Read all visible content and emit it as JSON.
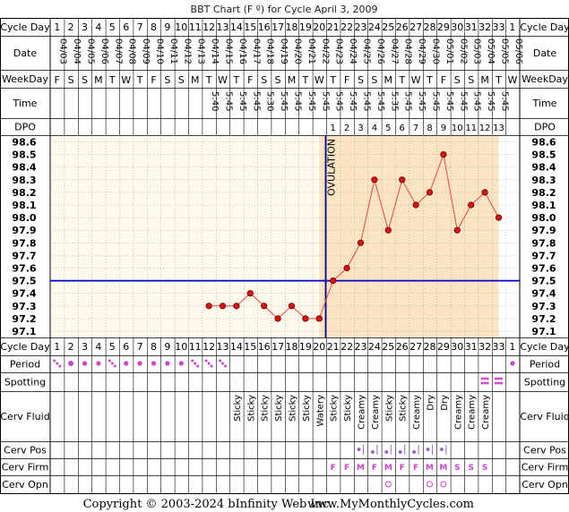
{
  "title": "BBT Chart (F º) for Cycle April 3, 2009",
  "footer": {
    "copyright": "Copyright © 2003-2024 bInfinity Web Inc.",
    "site": "www.MyMonthlyCycles.com"
  },
  "row_labels": {
    "cycle_day": "Cycle Day",
    "date": "Date",
    "weekday": "WeekDay",
    "time": "Time",
    "dpo": "DPO",
    "period": "Period",
    "spotting": "Spotting",
    "cerv_fluid": "Cerv Fluid",
    "cerv_pos": "Cerv Pos",
    "cerv_firm": "Cerv Firm",
    "cerv_opn": "Cerv Opn"
  },
  "columns": {
    "cycle_days": [
      "1",
      "2",
      "3",
      "4",
      "5",
      "6",
      "7",
      "8",
      "9",
      "10",
      "11",
      "12",
      "13",
      "14",
      "15",
      "16",
      "17",
      "18",
      "19",
      "20",
      "21",
      "22",
      "23",
      "24",
      "25",
      "26",
      "27",
      "28",
      "29",
      "30",
      "31",
      "32",
      "33",
      "1"
    ],
    "dates": [
      "04/03",
      "04/04",
      "04/05",
      "04/06",
      "04/07",
      "04/08",
      "04/09",
      "04/10",
      "04/11",
      "04/12",
      "04/13",
      "04/14",
      "04/15",
      "04/16",
      "04/17",
      "04/18",
      "04/19",
      "04/20",
      "04/21",
      "04/22",
      "04/23",
      "04/24",
      "04/25",
      "04/26",
      "04/27",
      "04/28",
      "04/29",
      "04/30",
      "05/01",
      "05/02",
      "05/03",
      "05/04",
      "05/05",
      "05/06"
    ],
    "weekdays": [
      "F",
      "S",
      "S",
      "M",
      "T",
      "W",
      "T",
      "F",
      "S",
      "S",
      "M",
      "T",
      "W",
      "T",
      "F",
      "S",
      "S",
      "M",
      "T",
      "W",
      "T",
      "F",
      "S",
      "S",
      "M",
      "T",
      "W",
      "T",
      "F",
      "S",
      "S",
      "M",
      "T",
      "W"
    ],
    "times": [
      "",
      "",
      "",
      "",
      "",
      "",
      "",
      "",
      "",
      "",
      "",
      "5:40",
      "5:45",
      "5:45",
      "5:45",
      "5:30",
      "5:45",
      "5:45",
      "5:45",
      "5:45",
      "5:45",
      "5:45",
      "5:45",
      "5:45",
      "5:35",
      "5:45",
      "5:45",
      "5:45",
      "5:45",
      "5:45",
      "5:45",
      "5:45",
      "5:45",
      ""
    ],
    "dpo": [
      "",
      "",
      "",
      "",
      "",
      "",
      "",
      "",
      "",
      "",
      "",
      "",
      "",
      "",
      "",
      "",
      "",
      "",
      "",
      "",
      "1",
      "2",
      "3",
      "4",
      "5",
      "6",
      "7",
      "8",
      "9",
      "10",
      "11",
      "12",
      "13",
      ""
    ],
    "period": [
      "spotty",
      "heavy",
      "medium",
      "medium",
      "spotty",
      "medium",
      "medium",
      "medium",
      "medium",
      "medium",
      "spotty",
      "spotty",
      "spotty",
      "",
      "",
      "",
      "",
      "",
      "",
      "",
      "",
      "",
      "",
      "",
      "",
      "",
      "",
      "",
      "",
      "",
      "",
      "",
      "",
      "medium"
    ],
    "spotting": [
      "",
      "",
      "",
      "",
      "",
      "",
      "",
      "",
      "",
      "",
      "",
      "",
      "",
      "",
      "",
      "",
      "",
      "",
      "",
      "",
      "",
      "",
      "",
      "",
      "",
      "",
      "",
      "",
      "",
      "",
      "",
      "spot",
      "spot",
      ""
    ],
    "cerv_fluid": [
      "",
      "",
      "",
      "",
      "",
      "",
      "",
      "",
      "",
      "",
      "",
      "",
      "",
      "Sticky",
      "Sticky",
      "Sticky",
      "Sticky",
      "Sticky",
      "Sticky",
      "Watery",
      "Sticky",
      "Sticky",
      "Creamy",
      "Creamy",
      "Sticky",
      "Sticky",
      "Creamy",
      "Dry",
      "Dry",
      "Creamy",
      "Creamy",
      "Creamy",
      "",
      ""
    ],
    "cerv_pos": [
      "",
      "",
      "",
      "",
      "",
      "",
      "",
      "",
      "",
      "",
      "",
      "",
      "",
      "",
      "",
      "",
      "",
      "",
      "",
      "",
      "",
      "",
      "low",
      "mid",
      "mid",
      "mid",
      "mid",
      "low",
      "low",
      "",
      "",
      "",
      "",
      ""
    ],
    "cerv_firm": [
      "",
      "",
      "",
      "",
      "",
      "",
      "",
      "",
      "",
      "",
      "",
      "",
      "",
      "",
      "",
      "",
      "",
      "",
      "",
      "",
      "F",
      "F",
      "M",
      "F",
      "M",
      "F",
      "F",
      "M",
      "M",
      "S",
      "S",
      "S",
      "",
      ""
    ],
    "cerv_opn": [
      "",
      "",
      "",
      "",
      "",
      "",
      "",
      "",
      "",
      "",
      "",
      "",
      "",
      "",
      "",
      "",
      "",
      "",
      "",
      "",
      "",
      "",
      "",
      "",
      "o",
      "",
      "",
      "o",
      "o",
      "",
      "",
      "",
      "",
      ""
    ]
  },
  "chart_data": {
    "type": "line",
    "y_ticks": [
      "98.6",
      "98.5",
      "98.4",
      "98.3",
      "98.2",
      "98.1",
      "98.0",
      "97.9",
      "97.8",
      "97.7",
      "97.6",
      "97.5",
      "97.4",
      "97.3",
      "97.2",
      "97.1"
    ],
    "ylim": [
      97.1,
      98.6
    ],
    "series": [
      {
        "x": [
          12,
          13,
          14,
          15,
          16,
          17,
          18,
          19,
          20,
          21,
          22,
          23,
          24,
          25,
          26,
          27,
          28,
          29,
          30,
          31,
          32,
          33
        ],
        "values": [
          97.3,
          97.3,
          97.3,
          97.4,
          97.3,
          97.2,
          97.3,
          97.2,
          97.2,
          97.5,
          97.6,
          97.8,
          98.3,
          97.9,
          98.3,
          98.1,
          98.2,
          98.5,
          97.9,
          98.1,
          98.2,
          98.0
        ]
      }
    ],
    "coverline": 97.5,
    "ovulation_day": 20,
    "ovulation_label": "OVULATION",
    "colors": {
      "line": "#ee4444",
      "point": "#dd1111",
      "coverline": "#0000cc",
      "ovulation": "#000099",
      "pre_bg": "#fdfaeb",
      "post_bg": "#fae4c2",
      "fill": "#cc44cc"
    }
  }
}
